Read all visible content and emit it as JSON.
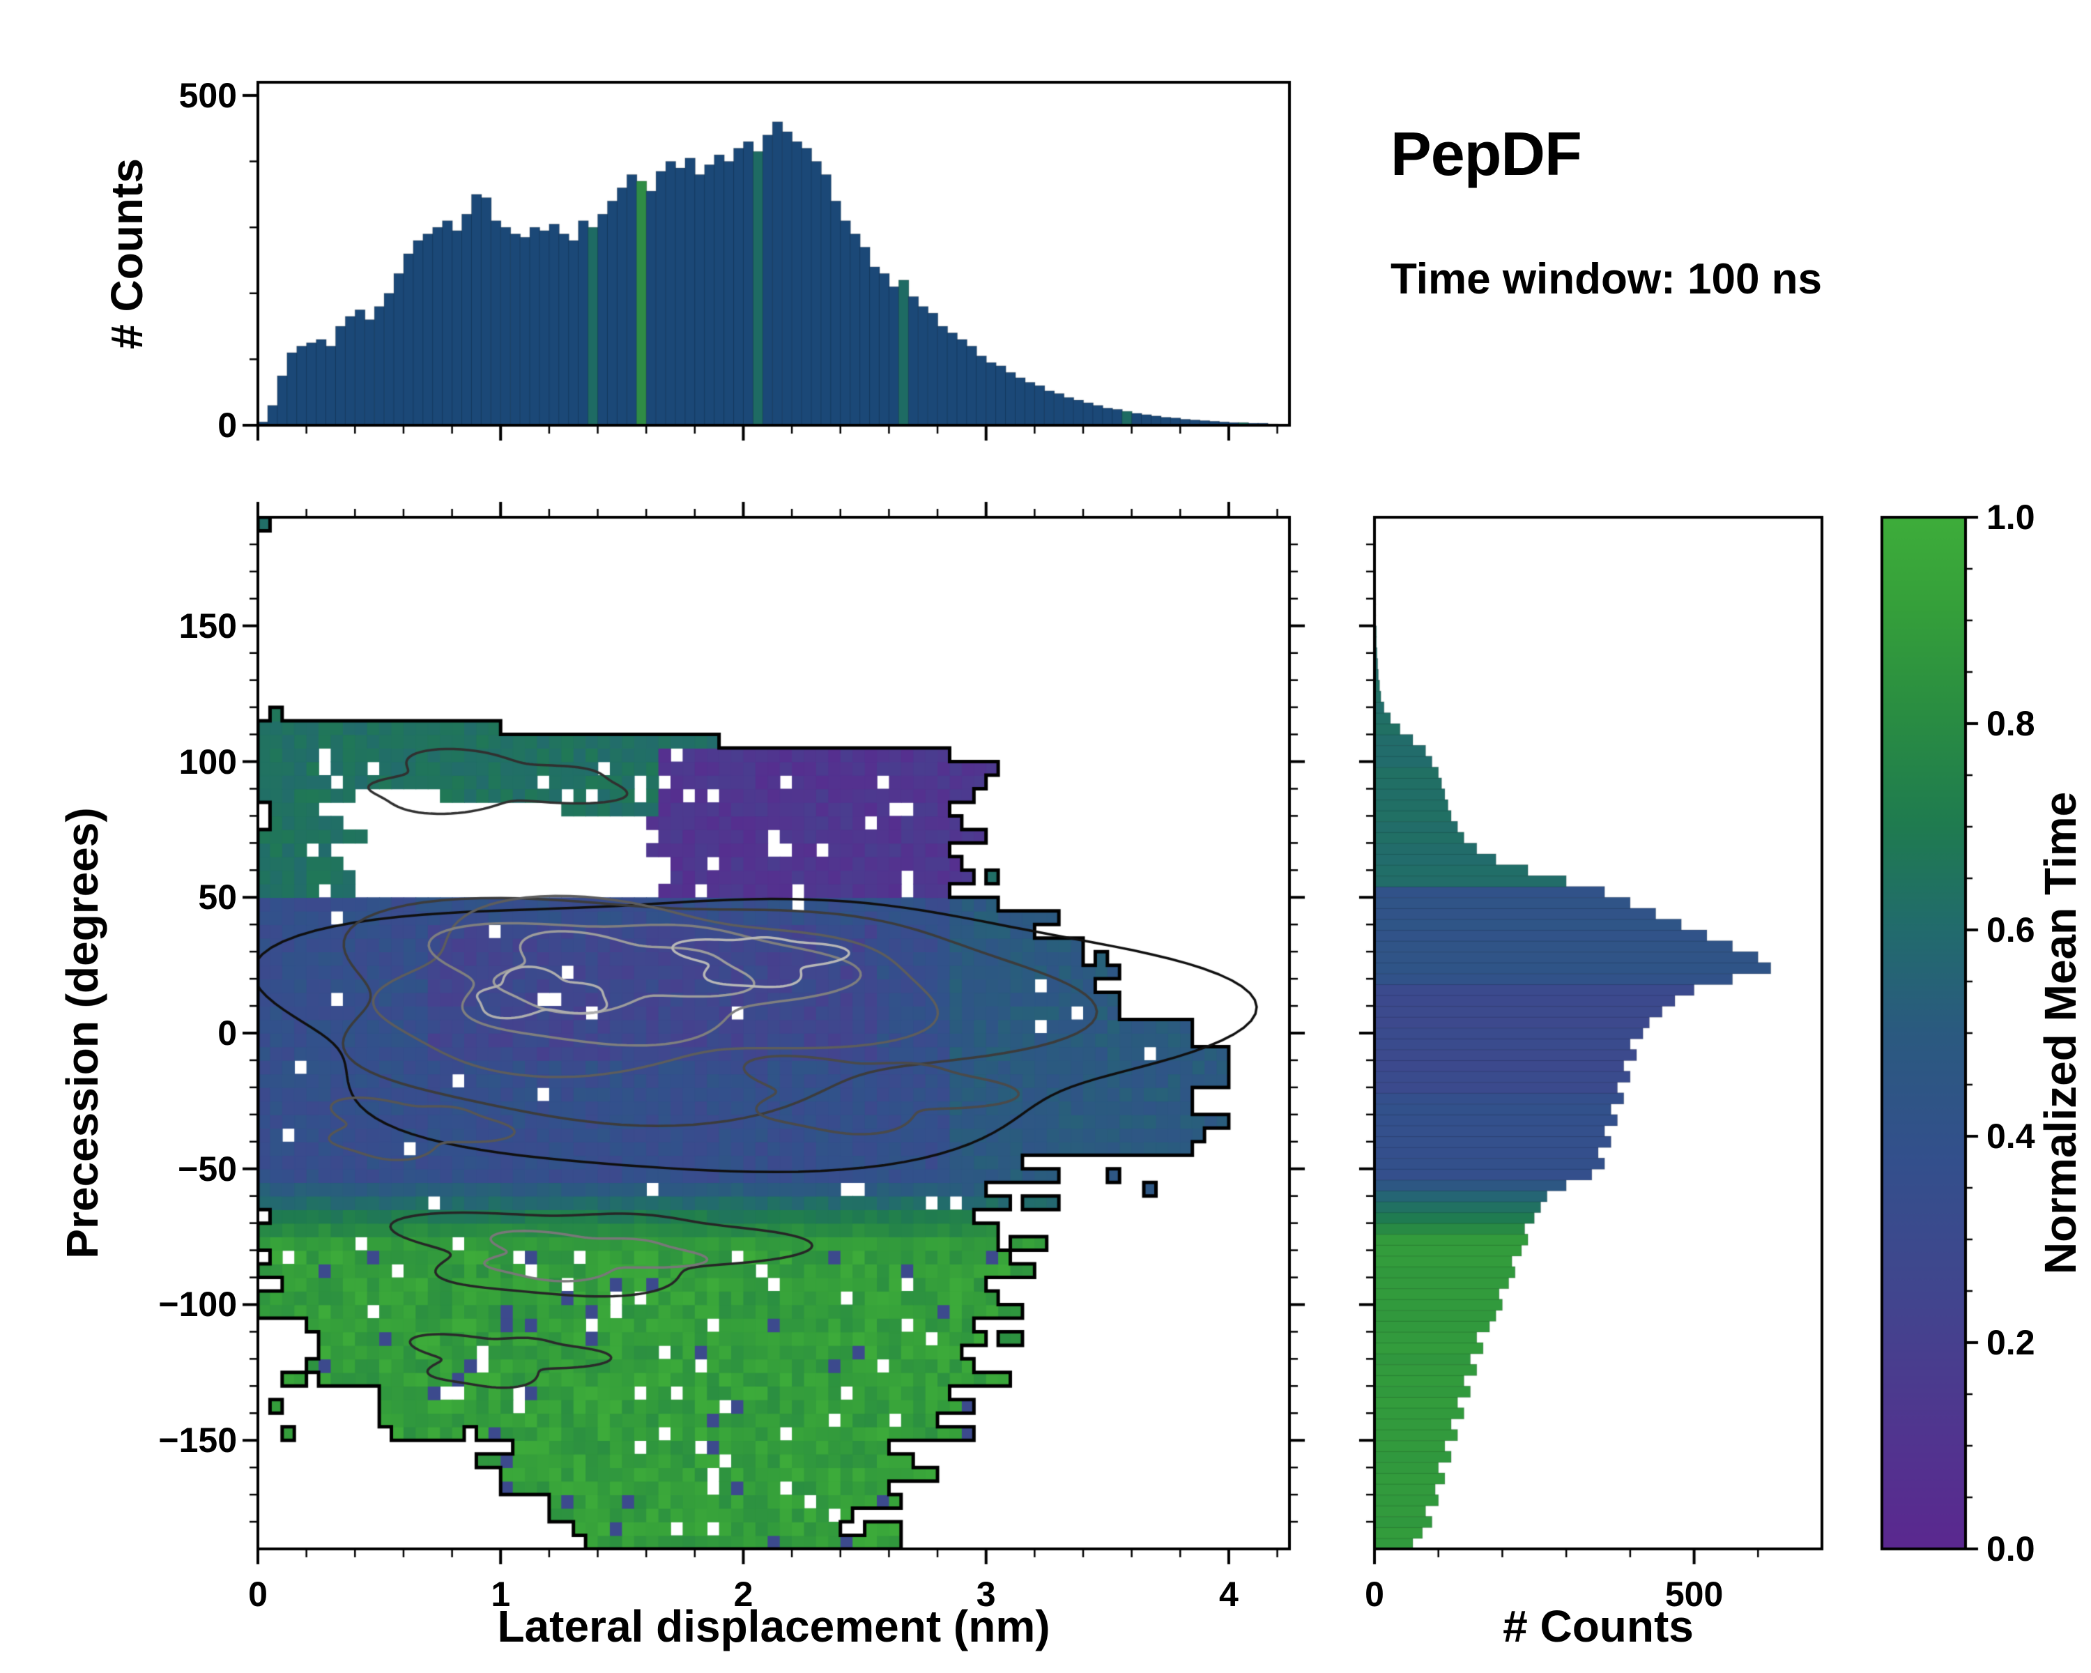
{
  "title": {
    "text": "PepDF",
    "subtitle": "Time window: 100 ns"
  },
  "chart_data": {
    "type": "heatmap",
    "title": "PepDF",
    "annotation": "Time window: 100 ns",
    "colormap": {
      "name": "viridis-truncated",
      "stops": [
        [
          0.0,
          "#5b288f"
        ],
        [
          0.12,
          "#50368f"
        ],
        [
          0.25,
          "#41468e"
        ],
        [
          0.38,
          "#33508c"
        ],
        [
          0.5,
          "#2b5a80"
        ],
        [
          0.6,
          "#226b6d"
        ],
        [
          0.7,
          "#1f7b50"
        ],
        [
          0.82,
          "#2b8f41"
        ],
        [
          0.92,
          "#36a13a"
        ],
        [
          1.0,
          "#3ead3a"
        ]
      ]
    },
    "main_heatmap": {
      "type": "heatmap",
      "xlabel": "Lateral displacement (nm)",
      "ylabel": "Precession (degrees)",
      "xlim": [
        0,
        4.25
      ],
      "ylim": [
        -190,
        190
      ],
      "xtick_values": [
        0,
        1,
        2,
        3,
        4
      ],
      "xtick_labels": [
        "0",
        "1",
        "2",
        "3",
        "4"
      ],
      "ytick_values": [
        -150,
        -100,
        -50,
        0,
        50,
        100,
        150
      ],
      "ytick_labels": [
        "−150",
        "−100",
        "−50",
        "0",
        "50",
        "100",
        "150"
      ],
      "grid": {
        "nx": 84,
        "ny": 76,
        "dx": 0.05,
        "dy": 5,
        "x0": 0,
        "y0": -190
      },
      "seed": 1337,
      "regions": {
        "teal_band": {
          "x_max": 2.55,
          "top": [
            118,
            -5.5
          ],
          "bottom": [
            96,
            -11
          ]
        },
        "purple_patch": {
          "x": [
            1.65,
            2.95
          ],
          "y": [
            52,
            103
          ]
        },
        "left_wedge": {
          "x_max": 0.4,
          "y": [
            52,
            100
          ]
        },
        "blob_xmax": [
          [
            52,
            35,
            3.15
          ],
          [
            35,
            5,
            3.5
          ],
          [
            5,
            -45,
            3.92
          ],
          [
            -45,
            -55,
            3.3
          ]
        ],
        "transition": {
          "y": [
            -78,
            -55
          ],
          "x_max": 3.15
        },
        "green_rows": [
          [
            -78,
            -105,
            0,
            3.1
          ],
          [
            -105,
            -132,
            0.18,
            3.05
          ],
          [
            -132,
            -152,
            0.55,
            2.85
          ],
          [
            -152,
            -170,
            0.95,
            2.7
          ],
          [
            -170,
            -190,
            1.3,
            2.6
          ]
        ],
        "hole_p": {
          "blob": 0.012,
          "patch": 0.06,
          "teal": 0.05,
          "trans": 0.03,
          "green": 0.05
        },
        "values": {
          "teal": [
            0.6,
            0.08
          ],
          "patch": [
            0.06,
            0.12
          ],
          "blob": [
            0.3,
            0.13
          ],
          "blob_core": [
            0.2,
            0.14
          ],
          "blob_right": [
            0.44,
            0.1
          ],
          "green": [
            0.82,
            0.17
          ],
          "trans": [
            0.42,
            0.86
          ]
        }
      },
      "specks": [
        [
          0.03,
          186
        ],
        [
          0.05,
          -140
        ],
        [
          0.1,
          -146
        ],
        [
          3.6,
          -30
        ],
        [
          3.75,
          -28
        ],
        [
          3.9,
          -35
        ],
        [
          3.55,
          -55
        ],
        [
          3.68,
          -60
        ],
        [
          3.05,
          57
        ],
        [
          2.6,
          -164
        ]
      ],
      "contours": [
        {
          "cx": 1.95,
          "cy": 2,
          "rx": 1.92,
          "ry": 50,
          "color": "#101010",
          "amp": 0.1,
          "ph": 0.5
        },
        {
          "cx": 1.72,
          "cy": 10,
          "rx": 1.5,
          "ry": 40,
          "color": "#3c3c3c",
          "amp": 0.12,
          "ph": 1.2
        },
        {
          "cx": 1.58,
          "cy": 16,
          "rx": 1.12,
          "ry": 30,
          "color": "#5d5d5d",
          "amp": 0.13,
          "ph": 2.1
        },
        {
          "cx": 1.52,
          "cy": 20,
          "rx": 0.8,
          "ry": 22,
          "color": "#7f7f7f",
          "amp": 0.15,
          "ph": 0.8
        },
        {
          "cx": 1.46,
          "cy": 22,
          "rx": 0.5,
          "ry": 13,
          "color": "#9c9c9c",
          "amp": 0.18,
          "ph": 1.9
        },
        {
          "cx": 2.06,
          "cy": 27,
          "rx": 0.3,
          "ry": 9,
          "color": "#b7b7b7",
          "amp": 0.2,
          "ph": 0.3
        },
        {
          "cx": 1.16,
          "cy": 14,
          "rx": 0.26,
          "ry": 8,
          "color": "#aeaeae",
          "amp": 0.2,
          "ph": 2.6
        },
        {
          "cx": 2.5,
          "cy": -22,
          "rx": 0.5,
          "ry": 13,
          "color": "#4a4a4a",
          "amp": 0.2,
          "ph": 1.1
        },
        {
          "cx": 1.35,
          "cy": -80,
          "rx": 0.75,
          "ry": 15,
          "color": "#262626",
          "amp": 0.18,
          "ph": 0.7
        },
        {
          "cx": 1.33,
          "cy": -82,
          "rx": 0.42,
          "ry": 8,
          "color": "#787878",
          "amp": 0.2,
          "ph": 1.5
        },
        {
          "cx": 0.95,
          "cy": 92,
          "rx": 0.5,
          "ry": 10,
          "color": "#303030",
          "amp": 0.2,
          "ph": 2.2
        },
        {
          "cx": 0.62,
          "cy": -35,
          "rx": 0.35,
          "ry": 10,
          "color": "#565656",
          "amp": 0.2,
          "ph": 1.4
        },
        {
          "cx": 1.0,
          "cy": -120,
          "rx": 0.35,
          "ry": 9,
          "color": "#2a2a2a",
          "amp": 0.22,
          "ph": 0.9
        }
      ]
    },
    "top_histogram": {
      "type": "bar",
      "ylabel": "# Counts",
      "xlim": [
        0,
        4.25
      ],
      "ylim": [
        0,
        520
      ],
      "ytick_values": [
        0,
        500
      ],
      "ytick_labels": [
        "0",
        "500"
      ],
      "bin_start": 0,
      "bin_width": 0.04,
      "bar_color": "#1b4877",
      "accent_teal": "#1e6b63",
      "accent_green": "#2f8c45",
      "values": [
        5,
        30,
        75,
        110,
        120,
        125,
        130,
        120,
        150,
        165,
        175,
        160,
        180,
        200,
        230,
        260,
        280,
        290,
        300,
        310,
        295,
        320,
        350,
        345,
        310,
        300,
        290,
        285,
        300,
        295,
        305,
        290,
        280,
        310,
        300,
        320,
        340,
        360,
        380,
        370,
        355,
        385,
        400,
        390,
        405,
        380,
        395,
        410,
        400,
        420,
        430,
        415,
        440,
        460,
        445,
        430,
        420,
        400,
        380,
        340,
        310,
        290,
        270,
        240,
        230,
        210,
        220,
        195,
        180,
        170,
        150,
        140,
        130,
        120,
        105,
        95,
        90,
        80,
        72,
        65,
        60,
        52,
        48,
        42,
        38,
        34,
        30,
        26,
        24,
        21,
        18,
        16,
        14,
        12,
        11,
        9,
        8,
        7,
        6,
        5,
        4,
        4,
        3,
        3,
        2
      ]
    },
    "right_histogram": {
      "type": "bar-horizontal",
      "xlabel": "# Counts",
      "xlim": [
        0,
        700
      ],
      "xtick_values": [
        0,
        500
      ],
      "xtick_labels": [
        "0",
        "500"
      ],
      "ylim": [
        -190,
        190
      ],
      "bin_start": -190,
      "bin_width": 4,
      "value_profile": [
        [
          55,
          190,
          0.62
        ],
        [
          20,
          55,
          0.42
        ],
        [
          -20,
          20,
          0.3
        ],
        [
          -55,
          -20,
          0.38
        ],
        [
          -75,
          -55,
          -1
        ],
        [
          -190,
          -75,
          0.88
        ]
      ],
      "values": [
        60,
        75,
        90,
        80,
        100,
        95,
        110,
        100,
        120,
        110,
        130,
        120,
        140,
        130,
        150,
        140,
        160,
        150,
        170,
        160,
        180,
        190,
        200,
        195,
        210,
        220,
        215,
        230,
        240,
        235,
        250,
        260,
        270,
        300,
        340,
        360,
        350,
        370,
        360,
        380,
        370,
        390,
        380,
        400,
        390,
        410,
        400,
        420,
        430,
        450,
        470,
        500,
        560,
        620,
        600,
        560,
        520,
        480,
        440,
        400,
        360,
        300,
        240,
        190,
        160,
        140,
        130,
        120,
        115,
        110,
        105,
        100,
        90,
        80,
        60,
        40,
        25,
        15,
        10,
        8,
        6,
        5,
        4,
        3,
        3,
        2,
        2,
        2,
        1,
        1,
        1,
        1,
        1,
        0,
        0
      ]
    },
    "colorbar": {
      "label": "Normalized Mean Time",
      "range": [
        0,
        1
      ],
      "tick_values": [
        0,
        0.2,
        0.4,
        0.6,
        0.8,
        1.0
      ],
      "tick_labels": [
        "0.0",
        "0.2",
        "0.4",
        "0.6",
        "0.8",
        "1.0"
      ]
    }
  }
}
